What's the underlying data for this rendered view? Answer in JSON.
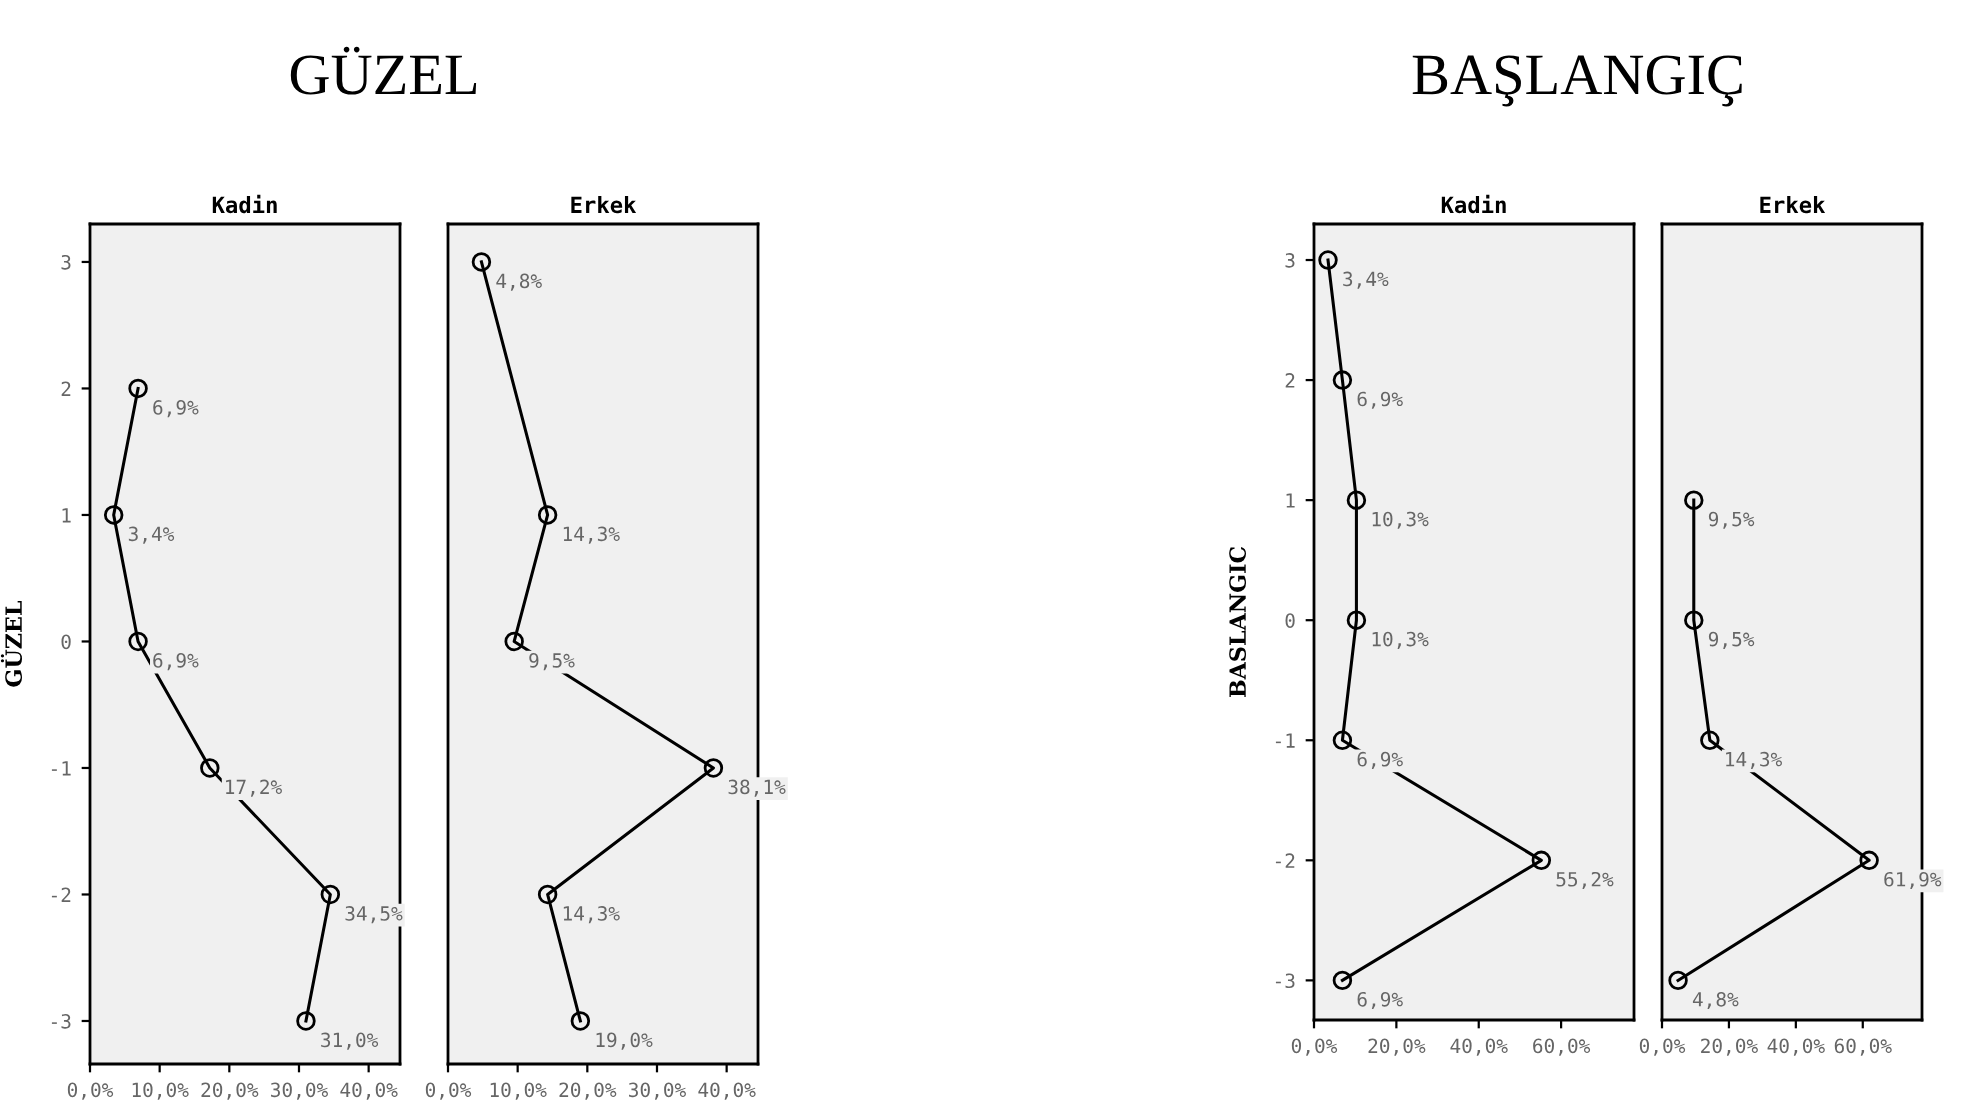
{
  "chart_data": [
    {
      "type": "line",
      "title": "Kadin",
      "ylabel": "GÜZEL",
      "x": [
        6.9,
        3.4,
        6.9,
        17.2,
        34.5,
        31.0
      ],
      "values": [
        2,
        1,
        0,
        -1,
        -2,
        -3
      ],
      "color": "#000000",
      "marker": "circle",
      "xlim": [
        0,
        44.5
      ],
      "xticks": [
        {
          "value": 0,
          "label": "0,0%"
        },
        {
          "value": 10,
          "label": "10,0%"
        },
        {
          "value": 20,
          "label": "20,0%"
        },
        {
          "value": 30,
          "label": "30,0%"
        },
        {
          "value": 40,
          "label": "40,0%"
        }
      ],
      "ylim": [
        -3.34,
        3.3
      ],
      "yticks": [
        -3,
        -2,
        -1,
        0,
        1,
        2,
        3
      ],
      "annotations": [
        "GÜZEL",
        {
          "text": "6,9%",
          "x": 6.9,
          "y": 2
        },
        {
          "text": "3,4%",
          "x": 3.4,
          "y": 1
        },
        {
          "text": "6,9%",
          "x": 6.9,
          "y": 0
        },
        {
          "text": "17,2%",
          "x": 17.2,
          "y": -1
        },
        {
          "text": "34,5%",
          "x": 34.5,
          "y": -2
        },
        {
          "text": "31,0%",
          "x": 31.0,
          "y": -3
        }
      ]
    },
    {
      "type": "line",
      "title": "Erkek",
      "x": [
        4.8,
        14.3,
        9.5,
        38.1,
        14.3,
        19.0
      ],
      "values": [
        3,
        1,
        0,
        -1,
        -2,
        -3
      ],
      "color": "#000000",
      "marker": "circle",
      "xlim": [
        0,
        44.5
      ],
      "xticks": [
        {
          "value": 0,
          "label": "0,0%"
        },
        {
          "value": 10,
          "label": "10,0%"
        },
        {
          "value": 20,
          "label": "20,0%"
        },
        {
          "value": 30,
          "label": "30,0%"
        },
        {
          "value": 40,
          "label": "40,0%"
        }
      ],
      "ylim": [
        -3.34,
        3.3
      ],
      "yticks": [
        -3,
        -2,
        -1,
        0,
        1,
        2,
        3
      ],
      "tick_labels": "x",
      "annotations": [
        {
          "text": "4,8%",
          "x": 4.8,
          "y": 3
        },
        {
          "text": "14,3%",
          "x": 14.3,
          "y": 1
        },
        {
          "text": "9,5%",
          "x": 9.5,
          "y": 0
        },
        {
          "text": "38,1%",
          "x": 38.1,
          "y": -1
        },
        {
          "text": "14,3%",
          "x": 14.3,
          "y": -2
        },
        {
          "text": "19,0%",
          "x": 19.0,
          "y": -3
        }
      ]
    },
    {
      "type": "line",
      "title": "Kadin",
      "ylabel": "BASLANGIC",
      "x": [
        3.4,
        6.9,
        10.3,
        10.3,
        6.9,
        55.2,
        6.9
      ],
      "values": [
        3,
        2,
        1,
        0,
        -1,
        -2,
        -3
      ],
      "color": "#000000",
      "marker": "circle",
      "xlim": [
        0,
        77.7
      ],
      "xticks": [
        {
          "value": 0,
          "label": "0,0%"
        },
        {
          "value": 20,
          "label": "20,0%"
        },
        {
          "value": 40,
          "label": "40,0%"
        },
        {
          "value": 60,
          "label": "60,0%"
        }
      ],
      "ylim": [
        -3.33,
        3.3
      ],
      "yticks": [
        -3,
        -2,
        -1,
        0,
        1,
        2,
        3
      ],
      "annotations": [
        "BAŞLANGIÇ",
        {
          "text": "3,4%",
          "x": 3.4,
          "y": 3
        },
        {
          "text": "6,9%",
          "x": 6.9,
          "y": 2
        },
        {
          "text": "10,3%",
          "x": 10.3,
          "y": 1
        },
        {
          "text": "10,3%",
          "x": 10.3,
          "y": 0
        },
        {
          "text": "6,9%",
          "x": 6.9,
          "y": -1
        },
        {
          "text": "55,2%",
          "x": 55.2,
          "y": -2
        },
        {
          "text": "6,9%",
          "x": 6.9,
          "y": -3
        }
      ]
    },
    {
      "type": "line",
      "title": "Erkek",
      "x": [
        9.5,
        9.5,
        14.3,
        61.9,
        4.8
      ],
      "values": [
        1,
        0,
        -1,
        -2,
        -3
      ],
      "color": "#000000",
      "marker": "circle",
      "xlim": [
        0,
        77.7
      ],
      "xticks": [
        {
          "value": 0,
          "label": "0,0%"
        },
        {
          "value": 20,
          "label": "20,0%"
        },
        {
          "value": 40,
          "label": "40,0%"
        },
        {
          "value": 60,
          "label": "60,0%"
        }
      ],
      "ylim": [
        -3.33,
        3.3
      ],
      "yticks": [
        -3,
        -2,
        -1,
        0,
        1,
        2,
        3
      ],
      "tick_labels": "x",
      "annotations": [
        {
          "text": "9,5%",
          "x": 9.5,
          "y": 1
        },
        {
          "text": "9,5%",
          "x": 9.5,
          "y": 0
        },
        {
          "text": "14,3%",
          "x": 14.3,
          "y": -1
        },
        {
          "text": "61,9%",
          "x": 61.9,
          "y": -2
        },
        {
          "text": "4,8%",
          "x": 4.8,
          "y": -3
        }
      ]
    }
  ]
}
